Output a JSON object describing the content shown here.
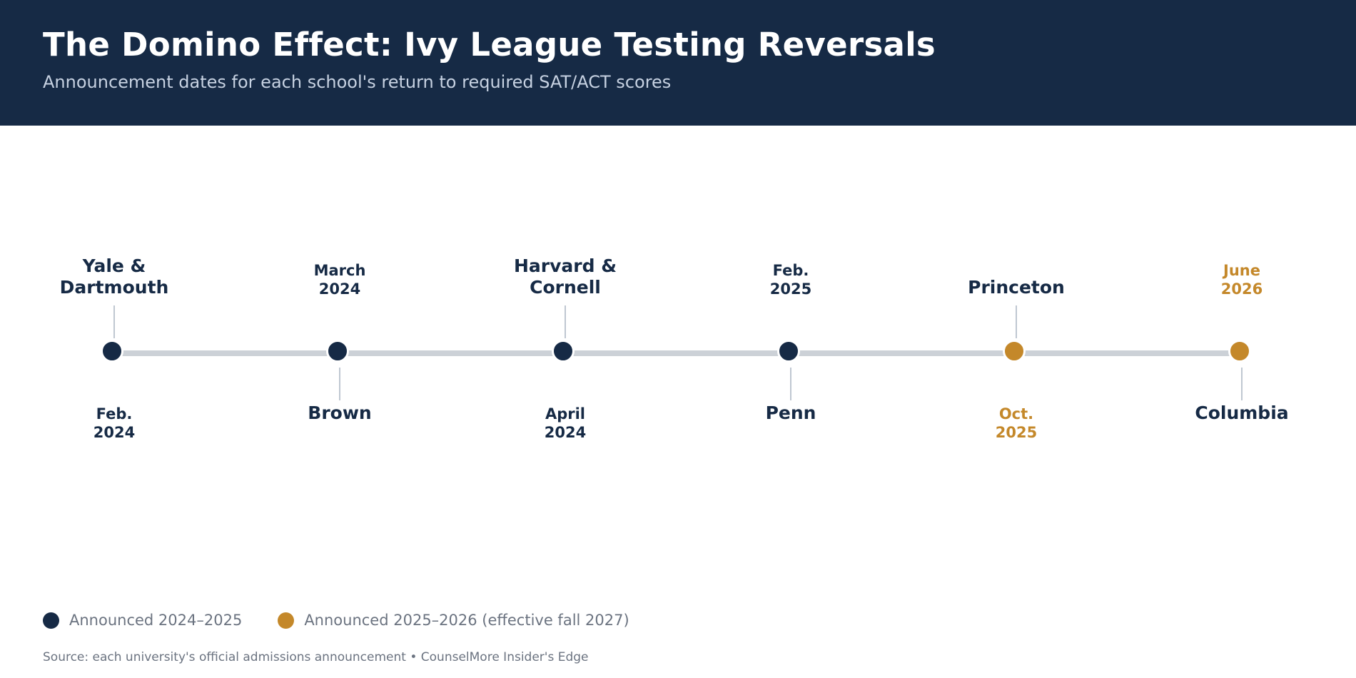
{
  "header": {
    "title": "The Domino Effect: Ivy League Testing Reversals",
    "subtitle": "Announcement dates for each school's return to required SAT/ACT scores"
  },
  "colors": {
    "header_bg": "#162a45",
    "announced_2024_2025": "#162a45",
    "announced_2025_2026": "#c4882a",
    "axis_line": "#ccd1d7"
  },
  "timeline": {
    "events": [
      {
        "school": "Yale & Dartmouth",
        "date": "Feb. 2024",
        "group": "2024-2025"
      },
      {
        "school": "Brown",
        "date": "March 2024",
        "group": "2024-2025"
      },
      {
        "school": "Harvard & Cornell",
        "date": "April 2024",
        "group": "2024-2025"
      },
      {
        "school": "Penn",
        "date": "Feb. 2025",
        "group": "2024-2025"
      },
      {
        "school": "Princeton",
        "date": "Oct. 2025",
        "group": "2025-2026"
      },
      {
        "school": "Columbia",
        "date": "June 2026",
        "group": "2025-2026"
      }
    ]
  },
  "legend": {
    "items": [
      {
        "label": "Announced 2024–2025",
        "color": "#162a45"
      },
      {
        "label": "Announced 2025–2026 (effective fall 2027)",
        "color": "#c4882a"
      }
    ]
  },
  "footer": {
    "source": "Source: each university's official admissions announcement  •  CounselMore Insider's Edge"
  }
}
